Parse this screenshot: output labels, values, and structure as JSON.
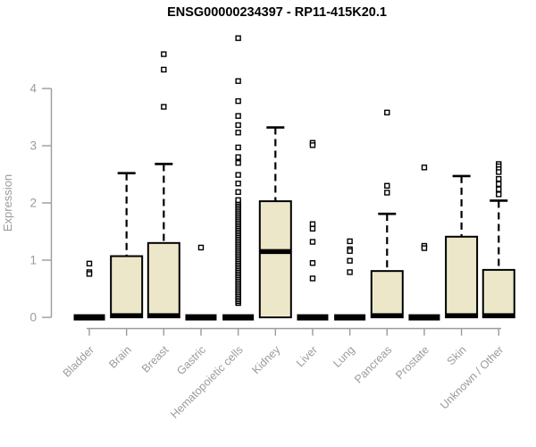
{
  "title": "ENSG00000234397 - RP11-415K20.1",
  "chart_data": {
    "type": "boxplot",
    "title": "ENSG00000234397 - RP11-415K20.1",
    "xlabel": "",
    "ylabel": "Expression",
    "ylim": [
      0,
      4.9
    ],
    "yticks": [
      0,
      1,
      2,
      3,
      4
    ],
    "grid": false,
    "legend": "none",
    "colors": {
      "box_fill": "#EDE7C9",
      "box_stroke": "#000000",
      "median": "#000000",
      "axis": "#9B9B9B",
      "tick_label": "#9B9B9B",
      "title": "#000000",
      "outlier_fill": "#FFFFFF",
      "outlier_stroke": "#000000"
    },
    "categories": [
      "Bladder",
      "Brain",
      "Breast",
      "Gastric",
      "Hematopoietic cells",
      "Kidney",
      "Liver",
      "Lung",
      "Pancreas",
      "Prostate",
      "Skin",
      "Unknown / Other"
    ],
    "series": [
      {
        "category": "Bladder",
        "shape": "flat",
        "q1": 0,
        "median": 0.02,
        "q3": 0.04,
        "whisker_low": 0,
        "whisker_high": 0.04,
        "outliers": [
          0.94,
          0.79,
          0.76
        ]
      },
      {
        "category": "Brain",
        "shape": "box",
        "q1": 0,
        "median": 0.03,
        "q3": 1.07,
        "whisker_low": 0,
        "whisker_high": 2.52,
        "outliers": []
      },
      {
        "category": "Breast",
        "shape": "box",
        "q1": 0,
        "median": 0.03,
        "q3": 1.3,
        "whisker_low": 0,
        "whisker_high": 2.68,
        "outliers": [
          4.6,
          4.33,
          3.68
        ]
      },
      {
        "category": "Gastric",
        "shape": "flat",
        "q1": 0,
        "median": 0.02,
        "q3": 0.04,
        "whisker_low": 0,
        "whisker_high": 0.04,
        "outliers": [
          1.22
        ]
      },
      {
        "category": "Hematopoietic cells",
        "shape": "flat",
        "q1": 0,
        "median": 0.02,
        "q3": 0.04,
        "whisker_low": 0,
        "whisker_high": 0.04,
        "outliers": [
          4.88,
          4.13,
          3.78,
          3.52,
          3.36,
          3.23,
          2.97,
          2.8,
          2.7,
          2.49,
          2.34,
          2.19
        ],
        "outlier_band": {
          "min": 0.25,
          "max": 2.05,
          "count": 60
        }
      },
      {
        "category": "Kidney",
        "shape": "box",
        "q1": 0,
        "median": 1.15,
        "q3": 2.03,
        "whisker_low": 0,
        "whisker_high": 3.32,
        "outliers": []
      },
      {
        "category": "Liver",
        "shape": "flat",
        "q1": 0,
        "median": 0.02,
        "q3": 0.04,
        "whisker_low": 0,
        "whisker_high": 0.04,
        "outliers": [
          3.05,
          3.01,
          1.63,
          1.55,
          1.32,
          0.95,
          0.68
        ]
      },
      {
        "category": "Lung",
        "shape": "flat",
        "q1": 0,
        "median": 0.02,
        "q3": 0.04,
        "whisker_low": 0,
        "whisker_high": 0.04,
        "outliers": [
          1.33,
          1.19,
          1.16,
          0.99,
          0.79
        ]
      },
      {
        "category": "Pancreas",
        "shape": "box",
        "q1": 0,
        "median": 0.03,
        "q3": 0.81,
        "whisker_low": 0,
        "whisker_high": 1.81,
        "outliers": [
          3.58,
          2.3,
          2.18
        ]
      },
      {
        "category": "Prostate",
        "shape": "flat",
        "q1": 0,
        "median": 0.02,
        "q3": 0.04,
        "whisker_low": 0,
        "whisker_high": 0.04,
        "outliers": [
          2.62,
          1.25,
          1.21
        ]
      },
      {
        "category": "Skin",
        "shape": "box",
        "q1": 0,
        "median": 0.03,
        "q3": 1.41,
        "whisker_low": 0,
        "whisker_high": 2.47,
        "outliers": []
      },
      {
        "category": "Unknown / Other",
        "shape": "box",
        "q1": 0,
        "median": 0.03,
        "q3": 0.83,
        "whisker_low": 0,
        "whisker_high": 2.04,
        "outliers": [
          2.68,
          2.64,
          2.59,
          2.54,
          2.42,
          2.33,
          2.24,
          2.15
        ]
      }
    ]
  }
}
